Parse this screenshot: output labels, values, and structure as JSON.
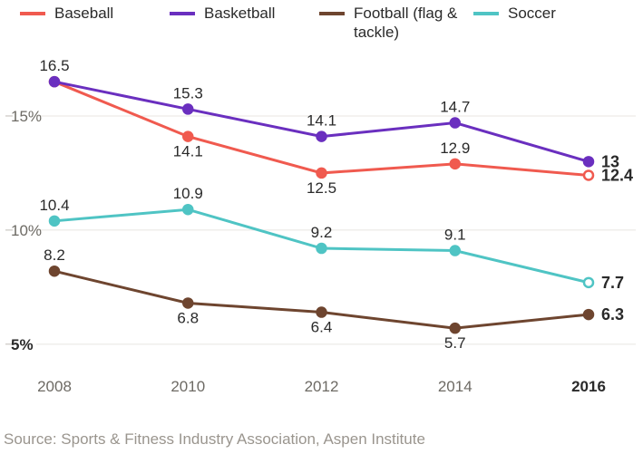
{
  "legend": [
    {
      "label": "Baseball",
      "color": "#f05a4f"
    },
    {
      "label": "Basketball",
      "color": "#6a2fbf"
    },
    {
      "label": "Football (flag & tackle)",
      "color": "#6e452f"
    },
    {
      "label": "Soccer",
      "color": "#4fc4c4"
    }
  ],
  "chart": {
    "type": "line",
    "background_color": "#ffffff",
    "grid_color": "#e8e5e1",
    "font_family": "Helvetica Neue",
    "label_color": "#2a2a2a",
    "axis_label_color": "#6d6a64",
    "axis_label_bold_color": "#2a2a2a",
    "x": {
      "ticks": [
        2008,
        2010,
        2012,
        2014,
        2016
      ],
      "bold_tick": 2016,
      "min": 2008,
      "max": 2016
    },
    "y": {
      "ticks": [
        5,
        10,
        15
      ],
      "tick_labels": [
        "5%",
        "10%",
        "15%"
      ],
      "bold_tick": 5,
      "min": 4,
      "max": 17.5
    },
    "series": [
      {
        "name": "Baseball",
        "color": "#f05a4f",
        "points": [
          {
            "x": 2008,
            "y": 16.5
          },
          {
            "x": 2010,
            "y": 14.1
          },
          {
            "x": 2012,
            "y": 12.5
          },
          {
            "x": 2014,
            "y": 12.9
          },
          {
            "x": 2016,
            "y": 12.4
          }
        ],
        "point_labels": [
          "16.5",
          "14.1",
          "12.5",
          "12.9",
          "12.4"
        ],
        "label_pos": [
          "above",
          "below",
          "below",
          "above",
          "right"
        ],
        "final_hollow": true,
        "final_label_color": "#2a2a2a"
      },
      {
        "name": "Basketball",
        "color": "#6a2fbf",
        "points": [
          {
            "x": 2008,
            "y": 16.5
          },
          {
            "x": 2010,
            "y": 15.3
          },
          {
            "x": 2012,
            "y": 14.1
          },
          {
            "x": 2014,
            "y": 14.7
          },
          {
            "x": 2016,
            "y": 13.0
          }
        ],
        "point_labels": [
          "",
          "15.3",
          "14.1",
          "14.7",
          "13"
        ],
        "label_pos": [
          "none",
          "above",
          "above",
          "above",
          "right"
        ],
        "final_hollow": false,
        "final_label_color": "#2a2a2a"
      },
      {
        "name": "Football",
        "color": "#6e452f",
        "points": [
          {
            "x": 2008,
            "y": 8.2
          },
          {
            "x": 2010,
            "y": 6.8
          },
          {
            "x": 2012,
            "y": 6.4
          },
          {
            "x": 2014,
            "y": 5.7
          },
          {
            "x": 2016,
            "y": 6.3
          }
        ],
        "point_labels": [
          "8.2",
          "6.8",
          "6.4",
          "5.7",
          "6.3"
        ],
        "label_pos": [
          "above",
          "below",
          "below",
          "below",
          "right"
        ],
        "final_hollow": false,
        "final_label_color": "#2a2a2a"
      },
      {
        "name": "Soccer",
        "color": "#4fc4c4",
        "points": [
          {
            "x": 2008,
            "y": 10.4
          },
          {
            "x": 2010,
            "y": 10.9
          },
          {
            "x": 2012,
            "y": 9.2
          },
          {
            "x": 2014,
            "y": 9.1
          },
          {
            "x": 2016,
            "y": 7.7
          }
        ],
        "point_labels": [
          "10.4",
          "10.9",
          "9.2",
          "9.1",
          "7.7"
        ],
        "label_pos": [
          "above",
          "above",
          "above",
          "above",
          "right"
        ],
        "final_hollow": true,
        "final_label_color": "#2a2a2a"
      }
    ],
    "marker_radius": 5,
    "line_width": 3,
    "data_label_fontsize": 17,
    "final_label_fontsize": 18
  },
  "source": "Source: Sports & Fitness Industry Association, Aspen Institute"
}
